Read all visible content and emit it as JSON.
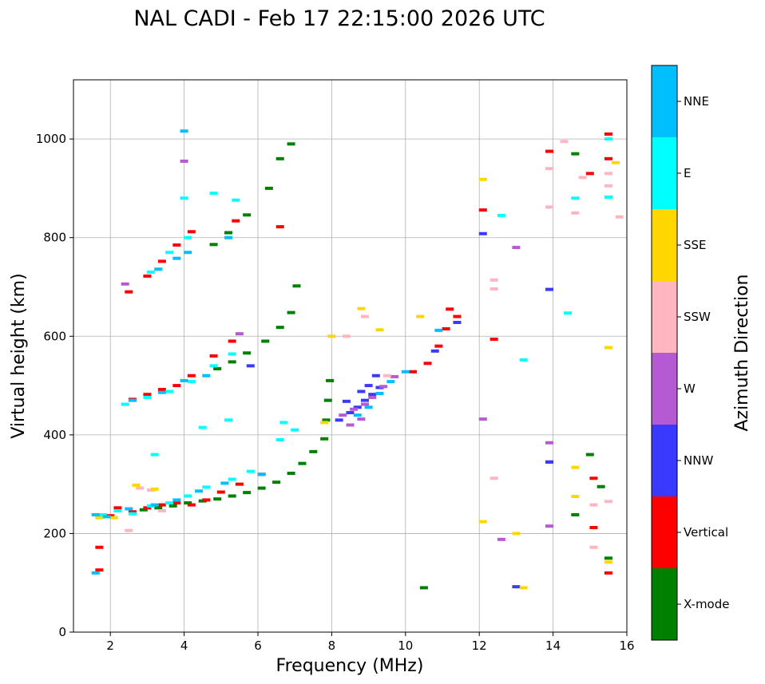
{
  "chart_data": {
    "type": "scatter",
    "title": "NAL CADI - Feb 17 22:15:00 2026 UTC",
    "xlabel": "Frequency (MHz)",
    "ylabel": "Virtual height (km)",
    "xlim": [
      1,
      16
    ],
    "ylim": [
      0,
      1120
    ],
    "xticks": [
      2,
      4,
      6,
      8,
      10,
      12,
      14,
      16
    ],
    "yticks": [
      0,
      200,
      400,
      600,
      800,
      1000
    ],
    "grid": true,
    "colorbar": {
      "label": "Azimuth Direction",
      "categories": [
        {
          "name": "X-mode",
          "color": "#008000"
        },
        {
          "name": "Vertical",
          "color": "#ff0000"
        },
        {
          "name": "NNW",
          "color": "#3a3aff"
        },
        {
          "name": "W",
          "color": "#b45ad2"
        },
        {
          "name": "SSW",
          "color": "#ffb6c1"
        },
        {
          "name": "SSE",
          "color": "#ffd700"
        },
        {
          "name": "E",
          "color": "#00ffff"
        },
        {
          "name": "NNE",
          "color": "#00bfff"
        }
      ]
    },
    "series": [
      {
        "name": "X-mode",
        "points": [
          [
            2.9,
            248
          ],
          [
            3.3,
            252
          ],
          [
            3.7,
            256
          ],
          [
            4.1,
            262
          ],
          [
            4.5,
            266
          ],
          [
            4.9,
            270
          ],
          [
            5.3,
            276
          ],
          [
            5.7,
            283
          ],
          [
            6.1,
            292
          ],
          [
            6.5,
            304
          ],
          [
            6.9,
            322
          ],
          [
            7.2,
            342
          ],
          [
            7.5,
            366
          ],
          [
            7.8,
            392
          ],
          [
            7.85,
            430
          ],
          [
            7.9,
            470
          ],
          [
            7.95,
            510
          ],
          [
            4.9,
            534
          ],
          [
            5.3,
            548
          ],
          [
            5.7,
            566
          ],
          [
            6.2,
            590
          ],
          [
            6.6,
            618
          ],
          [
            6.9,
            648
          ],
          [
            7.05,
            702
          ],
          [
            4.8,
            786
          ],
          [
            5.2,
            810
          ],
          [
            5.7,
            846
          ],
          [
            6.3,
            900
          ],
          [
            6.6,
            960
          ],
          [
            6.9,
            990
          ],
          [
            10.5,
            90
          ],
          [
            14.6,
            238
          ],
          [
            14.6,
            970
          ],
          [
            15.0,
            360
          ],
          [
            15.3,
            295
          ],
          [
            15.5,
            150
          ]
        ]
      },
      {
        "name": "Vertical",
        "points": [
          [
            1.7,
            126
          ],
          [
            1.7,
            172
          ],
          [
            2.0,
            236
          ],
          [
            2.2,
            252
          ],
          [
            2.6,
            244
          ],
          [
            3.0,
            252
          ],
          [
            3.4,
            258
          ],
          [
            3.8,
            262
          ],
          [
            4.2,
            258
          ],
          [
            4.6,
            268
          ],
          [
            5.0,
            284
          ],
          [
            5.5,
            300
          ],
          [
            6.1,
            320
          ],
          [
            2.6,
            472
          ],
          [
            3.0,
            482
          ],
          [
            3.4,
            492
          ],
          [
            3.8,
            500
          ],
          [
            4.2,
            520
          ],
          [
            4.8,
            560
          ],
          [
            5.3,
            590
          ],
          [
            2.5,
            690
          ],
          [
            3.0,
            722
          ],
          [
            3.4,
            752
          ],
          [
            3.8,
            785
          ],
          [
            4.2,
            812
          ],
          [
            5.4,
            834
          ],
          [
            6.6,
            822
          ],
          [
            10.2,
            528
          ],
          [
            10.6,
            545
          ],
          [
            10.9,
            580
          ],
          [
            11.1,
            615
          ],
          [
            11.4,
            640
          ],
          [
            11.2,
            655
          ],
          [
            12.1,
            856
          ],
          [
            12.4,
            594
          ],
          [
            13.9,
            345
          ],
          [
            13.9,
            975
          ],
          [
            15.1,
            212
          ],
          [
            15.1,
            312
          ],
          [
            15.5,
            120
          ],
          [
            15.5,
            960
          ],
          [
            15.5,
            1010
          ],
          [
            15.0,
            930
          ]
        ]
      },
      {
        "name": "NNW",
        "points": [
          [
            8.2,
            430
          ],
          [
            8.5,
            445
          ],
          [
            8.7,
            456
          ],
          [
            8.9,
            470
          ],
          [
            9.1,
            482
          ],
          [
            9.3,
            496
          ],
          [
            8.4,
            468
          ],
          [
            8.8,
            488
          ],
          [
            9.0,
            500
          ],
          [
            9.2,
            520
          ],
          [
            10.8,
            570
          ],
          [
            11.4,
            628
          ],
          [
            13.0,
            92
          ],
          [
            13.9,
            345
          ],
          [
            13.9,
            695
          ],
          [
            12.1,
            808
          ],
          [
            5.8,
            540
          ]
        ]
      },
      {
        "name": "W",
        "points": [
          [
            8.3,
            440
          ],
          [
            8.6,
            452
          ],
          [
            8.9,
            462
          ],
          [
            9.1,
            476
          ],
          [
            8.5,
            420
          ],
          [
            8.8,
            432
          ],
          [
            9.4,
            498
          ],
          [
            9.7,
            518
          ],
          [
            12.1,
            432
          ],
          [
            12.6,
            188
          ],
          [
            13.0,
            780
          ],
          [
            13.9,
            215
          ],
          [
            13.9,
            384
          ],
          [
            4.0,
            955
          ],
          [
            2.4,
            706
          ],
          [
            5.5,
            605
          ]
        ]
      },
      {
        "name": "SSW",
        "points": [
          [
            2.5,
            206
          ],
          [
            2.8,
            292
          ],
          [
            3.1,
            288
          ],
          [
            3.4,
            246
          ],
          [
            8.4,
            600
          ],
          [
            8.9,
            640
          ],
          [
            9.5,
            520
          ],
          [
            12.4,
            312
          ],
          [
            12.4,
            696
          ],
          [
            12.4,
            714
          ],
          [
            13.9,
            862
          ],
          [
            13.9,
            940
          ],
          [
            14.3,
            995
          ],
          [
            14.6,
            850
          ],
          [
            14.8,
            922
          ],
          [
            15.1,
            172
          ],
          [
            15.1,
            258
          ],
          [
            15.5,
            265
          ],
          [
            15.5,
            905
          ],
          [
            15.5,
            930
          ],
          [
            15.8,
            842
          ]
        ]
      },
      {
        "name": "SSE",
        "points": [
          [
            1.7,
            232
          ],
          [
            2.1,
            232
          ],
          [
            2.7,
            298
          ],
          [
            3.2,
            290
          ],
          [
            8.0,
            600
          ],
          [
            8.8,
            656
          ],
          [
            9.3,
            613
          ],
          [
            10.4,
            640
          ],
          [
            12.1,
            918
          ],
          [
            12.1,
            224
          ],
          [
            13.0,
            200
          ],
          [
            13.2,
            90
          ],
          [
            14.6,
            334
          ],
          [
            14.6,
            275
          ],
          [
            15.5,
            142
          ],
          [
            15.5,
            577
          ],
          [
            15.7,
            952
          ],
          [
            7.8,
            425
          ]
        ]
      },
      {
        "name": "E",
        "points": [
          [
            1.8,
            238
          ],
          [
            2.2,
            246
          ],
          [
            2.6,
            240
          ],
          [
            3.1,
            256
          ],
          [
            3.6,
            262
          ],
          [
            4.1,
            276
          ],
          [
            4.6,
            294
          ],
          [
            5.3,
            310
          ],
          [
            5.8,
            326
          ],
          [
            2.4,
            462
          ],
          [
            3.0,
            476
          ],
          [
            3.6,
            488
          ],
          [
            4.2,
            508
          ],
          [
            4.8,
            540
          ],
          [
            5.3,
            564
          ],
          [
            4.5,
            415
          ],
          [
            5.2,
            430
          ],
          [
            3.2,
            360
          ],
          [
            4.0,
            880
          ],
          [
            4.8,
            890
          ],
          [
            5.4,
            876
          ],
          [
            3.1,
            730
          ],
          [
            3.6,
            770
          ],
          [
            4.1,
            800
          ],
          [
            6.7,
            425
          ],
          [
            7.0,
            410
          ],
          [
            6.6,
            390
          ],
          [
            12.6,
            845
          ],
          [
            13.2,
            552
          ],
          [
            14.4,
            647
          ],
          [
            14.6,
            880
          ],
          [
            15.5,
            1000
          ],
          [
            15.5,
            882
          ]
        ]
      },
      {
        "name": "NNE",
        "points": [
          [
            1.6,
            120
          ],
          [
            1.6,
            238
          ],
          [
            1.9,
            234
          ],
          [
            2.5,
            250
          ],
          [
            3.2,
            258
          ],
          [
            3.8,
            268
          ],
          [
            4.4,
            286
          ],
          [
            5.1,
            302
          ],
          [
            2.6,
            470
          ],
          [
            3.4,
            486
          ],
          [
            4.0,
            510
          ],
          [
            4.6,
            520
          ],
          [
            3.3,
            736
          ],
          [
            3.8,
            758
          ],
          [
            4.1,
            770
          ],
          [
            4.0,
            1016
          ],
          [
            5.2,
            800
          ],
          [
            6.1,
            320
          ],
          [
            8.7,
            440
          ],
          [
            9.0,
            456
          ],
          [
            9.3,
            484
          ],
          [
            9.6,
            508
          ],
          [
            10.0,
            528
          ],
          [
            10.9,
            612
          ]
        ]
      }
    ]
  }
}
